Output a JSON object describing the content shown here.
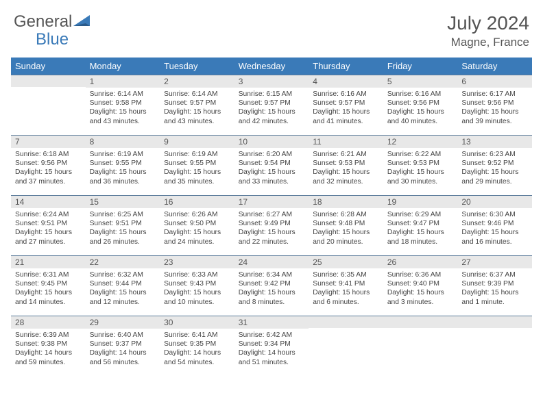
{
  "logo": {
    "part1": "General",
    "part2": "Blue"
  },
  "title": "July 2024",
  "location": "Magne, France",
  "day_headers": [
    "Sunday",
    "Monday",
    "Tuesday",
    "Wednesday",
    "Thursday",
    "Friday",
    "Saturday"
  ],
  "colors": {
    "header_bg": "#3a7ab8",
    "daynum_bg": "#e8e8e8",
    "daynum_border": "#5a7a9a",
    "text": "#444444",
    "title": "#555555"
  },
  "weeks": [
    [
      {
        "num": "",
        "sunrise": "",
        "sunset": "",
        "daylight": ""
      },
      {
        "num": "1",
        "sunrise": "Sunrise: 6:14 AM",
        "sunset": "Sunset: 9:58 PM",
        "daylight": "Daylight: 15 hours and 43 minutes."
      },
      {
        "num": "2",
        "sunrise": "Sunrise: 6:14 AM",
        "sunset": "Sunset: 9:57 PM",
        "daylight": "Daylight: 15 hours and 43 minutes."
      },
      {
        "num": "3",
        "sunrise": "Sunrise: 6:15 AM",
        "sunset": "Sunset: 9:57 PM",
        "daylight": "Daylight: 15 hours and 42 minutes."
      },
      {
        "num": "4",
        "sunrise": "Sunrise: 6:16 AM",
        "sunset": "Sunset: 9:57 PM",
        "daylight": "Daylight: 15 hours and 41 minutes."
      },
      {
        "num": "5",
        "sunrise": "Sunrise: 6:16 AM",
        "sunset": "Sunset: 9:56 PM",
        "daylight": "Daylight: 15 hours and 40 minutes."
      },
      {
        "num": "6",
        "sunrise": "Sunrise: 6:17 AM",
        "sunset": "Sunset: 9:56 PM",
        "daylight": "Daylight: 15 hours and 39 minutes."
      }
    ],
    [
      {
        "num": "7",
        "sunrise": "Sunrise: 6:18 AM",
        "sunset": "Sunset: 9:56 PM",
        "daylight": "Daylight: 15 hours and 37 minutes."
      },
      {
        "num": "8",
        "sunrise": "Sunrise: 6:19 AM",
        "sunset": "Sunset: 9:55 PM",
        "daylight": "Daylight: 15 hours and 36 minutes."
      },
      {
        "num": "9",
        "sunrise": "Sunrise: 6:19 AM",
        "sunset": "Sunset: 9:55 PM",
        "daylight": "Daylight: 15 hours and 35 minutes."
      },
      {
        "num": "10",
        "sunrise": "Sunrise: 6:20 AM",
        "sunset": "Sunset: 9:54 PM",
        "daylight": "Daylight: 15 hours and 33 minutes."
      },
      {
        "num": "11",
        "sunrise": "Sunrise: 6:21 AM",
        "sunset": "Sunset: 9:53 PM",
        "daylight": "Daylight: 15 hours and 32 minutes."
      },
      {
        "num": "12",
        "sunrise": "Sunrise: 6:22 AM",
        "sunset": "Sunset: 9:53 PM",
        "daylight": "Daylight: 15 hours and 30 minutes."
      },
      {
        "num": "13",
        "sunrise": "Sunrise: 6:23 AM",
        "sunset": "Sunset: 9:52 PM",
        "daylight": "Daylight: 15 hours and 29 minutes."
      }
    ],
    [
      {
        "num": "14",
        "sunrise": "Sunrise: 6:24 AM",
        "sunset": "Sunset: 9:51 PM",
        "daylight": "Daylight: 15 hours and 27 minutes."
      },
      {
        "num": "15",
        "sunrise": "Sunrise: 6:25 AM",
        "sunset": "Sunset: 9:51 PM",
        "daylight": "Daylight: 15 hours and 26 minutes."
      },
      {
        "num": "16",
        "sunrise": "Sunrise: 6:26 AM",
        "sunset": "Sunset: 9:50 PM",
        "daylight": "Daylight: 15 hours and 24 minutes."
      },
      {
        "num": "17",
        "sunrise": "Sunrise: 6:27 AM",
        "sunset": "Sunset: 9:49 PM",
        "daylight": "Daylight: 15 hours and 22 minutes."
      },
      {
        "num": "18",
        "sunrise": "Sunrise: 6:28 AM",
        "sunset": "Sunset: 9:48 PM",
        "daylight": "Daylight: 15 hours and 20 minutes."
      },
      {
        "num": "19",
        "sunrise": "Sunrise: 6:29 AM",
        "sunset": "Sunset: 9:47 PM",
        "daylight": "Daylight: 15 hours and 18 minutes."
      },
      {
        "num": "20",
        "sunrise": "Sunrise: 6:30 AM",
        "sunset": "Sunset: 9:46 PM",
        "daylight": "Daylight: 15 hours and 16 minutes."
      }
    ],
    [
      {
        "num": "21",
        "sunrise": "Sunrise: 6:31 AM",
        "sunset": "Sunset: 9:45 PM",
        "daylight": "Daylight: 15 hours and 14 minutes."
      },
      {
        "num": "22",
        "sunrise": "Sunrise: 6:32 AM",
        "sunset": "Sunset: 9:44 PM",
        "daylight": "Daylight: 15 hours and 12 minutes."
      },
      {
        "num": "23",
        "sunrise": "Sunrise: 6:33 AM",
        "sunset": "Sunset: 9:43 PM",
        "daylight": "Daylight: 15 hours and 10 minutes."
      },
      {
        "num": "24",
        "sunrise": "Sunrise: 6:34 AM",
        "sunset": "Sunset: 9:42 PM",
        "daylight": "Daylight: 15 hours and 8 minutes."
      },
      {
        "num": "25",
        "sunrise": "Sunrise: 6:35 AM",
        "sunset": "Sunset: 9:41 PM",
        "daylight": "Daylight: 15 hours and 6 minutes."
      },
      {
        "num": "26",
        "sunrise": "Sunrise: 6:36 AM",
        "sunset": "Sunset: 9:40 PM",
        "daylight": "Daylight: 15 hours and 3 minutes."
      },
      {
        "num": "27",
        "sunrise": "Sunrise: 6:37 AM",
        "sunset": "Sunset: 9:39 PM",
        "daylight": "Daylight: 15 hours and 1 minute."
      }
    ],
    [
      {
        "num": "28",
        "sunrise": "Sunrise: 6:39 AM",
        "sunset": "Sunset: 9:38 PM",
        "daylight": "Daylight: 14 hours and 59 minutes."
      },
      {
        "num": "29",
        "sunrise": "Sunrise: 6:40 AM",
        "sunset": "Sunset: 9:37 PM",
        "daylight": "Daylight: 14 hours and 56 minutes."
      },
      {
        "num": "30",
        "sunrise": "Sunrise: 6:41 AM",
        "sunset": "Sunset: 9:35 PM",
        "daylight": "Daylight: 14 hours and 54 minutes."
      },
      {
        "num": "31",
        "sunrise": "Sunrise: 6:42 AM",
        "sunset": "Sunset: 9:34 PM",
        "daylight": "Daylight: 14 hours and 51 minutes."
      },
      {
        "num": "",
        "sunrise": "",
        "sunset": "",
        "daylight": ""
      },
      {
        "num": "",
        "sunrise": "",
        "sunset": "",
        "daylight": ""
      },
      {
        "num": "",
        "sunrise": "",
        "sunset": "",
        "daylight": ""
      }
    ]
  ]
}
